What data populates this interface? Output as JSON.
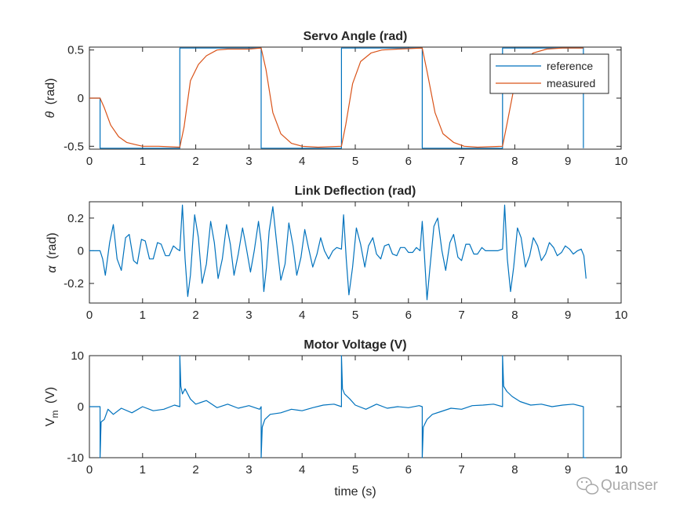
{
  "chart_data": [
    {
      "type": "line",
      "title": "Servo Angle (rad)",
      "xlabel": "",
      "ylabel": "θ (rad)",
      "ylabel_symbol": "θ",
      "ylabel_unit": "(rad)",
      "xlim": [
        0,
        10
      ],
      "ylim": [
        -0.53,
        0.53
      ],
      "xticks": [
        0,
        1,
        2,
        3,
        4,
        5,
        6,
        7,
        8,
        9,
        10
      ],
      "yticks": [
        -0.5,
        0,
        0.5
      ],
      "ytick_labels": [
        "-0.5",
        "0",
        "0.5"
      ],
      "legend": {
        "position": "top-right",
        "entries": [
          "reference",
          "measured"
        ]
      },
      "series": [
        {
          "name": "reference",
          "color": "#0072BD",
          "x": [
            0,
            0.2,
            0.2,
            1.7,
            1.7,
            3.23,
            3.23,
            4.74,
            4.74,
            6.26,
            6.26,
            7.77,
            7.77,
            9.29,
            9.29
          ],
          "y": [
            0,
            0,
            -0.52,
            -0.52,
            0.52,
            0.52,
            -0.52,
            -0.52,
            0.52,
            0.52,
            -0.52,
            -0.52,
            0.52,
            0.52,
            -0.52
          ]
        },
        {
          "name": "measured",
          "color": "#D95319",
          "x": [
            0,
            0.2,
            0.28,
            0.4,
            0.55,
            0.7,
            0.85,
            1.0,
            1.3,
            1.7,
            1.78,
            1.9,
            2.05,
            2.2,
            2.4,
            2.6,
            3.0,
            3.23,
            3.32,
            3.45,
            3.6,
            3.8,
            4.0,
            4.3,
            4.74,
            4.82,
            4.95,
            5.1,
            5.3,
            5.5,
            5.8,
            6.26,
            6.35,
            6.5,
            6.65,
            6.85,
            7.05,
            7.3,
            7.77,
            7.85,
            8.0,
            8.15,
            8.35,
            8.6,
            8.9,
            9.29
          ],
          "y": [
            0,
            0,
            -0.1,
            -0.28,
            -0.4,
            -0.46,
            -0.48,
            -0.5,
            -0.5,
            -0.51,
            -0.3,
            0.18,
            0.35,
            0.44,
            0.5,
            0.51,
            0.51,
            0.52,
            0.3,
            -0.15,
            -0.37,
            -0.47,
            -0.5,
            -0.51,
            -0.5,
            -0.28,
            0.15,
            0.38,
            0.47,
            0.5,
            0.51,
            0.52,
            0.28,
            -0.15,
            -0.37,
            -0.46,
            -0.5,
            -0.51,
            -0.5,
            -0.28,
            0.15,
            0.38,
            0.47,
            0.51,
            0.52,
            0.52
          ]
        }
      ]
    },
    {
      "type": "line",
      "title": "Link Deflection (rad)",
      "xlabel": "",
      "ylabel": "α (rad)",
      "ylabel_symbol": "α",
      "ylabel_unit": "(rad)",
      "xlim": [
        0,
        10
      ],
      "ylim": [
        -0.32,
        0.3
      ],
      "xticks": [
        0,
        1,
        2,
        3,
        4,
        5,
        6,
        7,
        8,
        9,
        10
      ],
      "yticks": [
        -0.2,
        0,
        0.2
      ],
      "ytick_labels": [
        "-0.2",
        "0",
        "0.2"
      ],
      "series": [
        {
          "name": "alpha",
          "color": "#0072BD",
          "x": [
            0,
            0.2,
            0.25,
            0.3,
            0.38,
            0.45,
            0.52,
            0.6,
            0.68,
            0.75,
            0.83,
            0.9,
            0.98,
            1.05,
            1.13,
            1.2,
            1.28,
            1.35,
            1.43,
            1.5,
            1.58,
            1.65,
            1.7,
            1.75,
            1.8,
            1.85,
            1.9,
            1.98,
            2.05,
            2.12,
            2.2,
            2.28,
            2.35,
            2.42,
            2.5,
            2.58,
            2.65,
            2.72,
            2.8,
            2.88,
            2.95,
            3.03,
            3.1,
            3.18,
            3.23,
            3.28,
            3.33,
            3.38,
            3.45,
            3.52,
            3.6,
            3.68,
            3.75,
            3.83,
            3.9,
            3.98,
            4.05,
            4.12,
            4.2,
            4.28,
            4.35,
            4.42,
            4.5,
            4.58,
            4.65,
            4.74,
            4.78,
            4.83,
            4.88,
            4.95,
            5.02,
            5.1,
            5.18,
            5.25,
            5.33,
            5.4,
            5.48,
            5.55,
            5.63,
            5.7,
            5.78,
            5.85,
            5.93,
            6.0,
            6.08,
            6.15,
            6.22,
            6.26,
            6.3,
            6.35,
            6.4,
            6.48,
            6.55,
            6.63,
            6.7,
            6.78,
            6.85,
            6.93,
            7.0,
            7.08,
            7.15,
            7.23,
            7.3,
            7.38,
            7.45,
            7.53,
            7.6,
            7.68,
            7.77,
            7.81,
            7.86,
            7.92,
            7.98,
            8.05,
            8.12,
            8.2,
            8.28,
            8.35,
            8.43,
            8.5,
            8.58,
            8.65,
            8.73,
            8.8,
            8.88,
            8.95,
            9.03,
            9.1,
            9.18,
            9.25,
            9.3,
            9.34
          ],
          "y": [
            0,
            0,
            -0.05,
            -0.15,
            0.05,
            0.16,
            -0.05,
            -0.12,
            0.08,
            0.1,
            -0.06,
            -0.08,
            0.07,
            0.06,
            -0.05,
            -0.05,
            0.05,
            0.04,
            -0.03,
            -0.03,
            0.03,
            0.01,
            0,
            0.28,
            -0.05,
            -0.28,
            -0.15,
            0.22,
            0.08,
            -0.2,
            -0.08,
            0.18,
            0.05,
            -0.17,
            -0.05,
            0.16,
            0.04,
            -0.15,
            -0.02,
            0.14,
            0.02,
            -0.13,
            0.0,
            0.18,
            0.05,
            -0.25,
            -0.1,
            0.12,
            0.27,
            0.05,
            -0.18,
            -0.08,
            0.17,
            0.03,
            -0.15,
            -0.04,
            0.13,
            0.02,
            -0.1,
            -0.02,
            0.08,
            0.0,
            -0.05,
            0.0,
            0.02,
            0.01,
            0.22,
            -0.05,
            -0.27,
            -0.1,
            0.14,
            0.04,
            -0.1,
            0.03,
            0.08,
            -0.02,
            -0.05,
            0.03,
            0.04,
            -0.02,
            -0.03,
            0.02,
            0.02,
            -0.01,
            -0.01,
            0.02,
            0.0,
            0.18,
            -0.02,
            -0.3,
            -0.12,
            0.15,
            0.2,
            0.0,
            -0.12,
            0.05,
            0.1,
            -0.04,
            -0.06,
            0.04,
            0.04,
            -0.02,
            -0.02,
            0.02,
            0.0,
            0.0,
            0.0,
            0.0,
            0.01,
            0.28,
            -0.05,
            -0.25,
            -0.1,
            0.14,
            0.08,
            -0.1,
            -0.03,
            0.08,
            0.03,
            -0.06,
            -0.02,
            0.05,
            0.02,
            -0.03,
            -0.01,
            0.03,
            0.01,
            -0.02,
            0.0,
            0.01,
            -0.03,
            -0.17
          ]
        }
      ]
    },
    {
      "type": "line",
      "title": "Motor Voltage (V)",
      "xlabel": "time (s)",
      "ylabel": "Vm (V)",
      "ylabel_symbol": "V",
      "ylabel_subscript": "m",
      "ylabel_unit": "(V)",
      "xlim": [
        0,
        10
      ],
      "ylim": [
        -10,
        10
      ],
      "xticks": [
        0,
        1,
        2,
        3,
        4,
        5,
        6,
        7,
        8,
        9,
        10
      ],
      "yticks": [
        -10,
        0,
        10
      ],
      "ytick_labels": [
        "-10",
        "0",
        "10"
      ],
      "series": [
        {
          "name": "Vm",
          "color": "#0072BD",
          "x": [
            0,
            0.2,
            0.2,
            0.22,
            0.28,
            0.35,
            0.45,
            0.6,
            0.8,
            1.0,
            1.2,
            1.4,
            1.6,
            1.7,
            1.7,
            1.72,
            1.75,
            1.8,
            1.9,
            2.0,
            2.2,
            2.4,
            2.6,
            2.8,
            3.0,
            3.2,
            3.23,
            3.23,
            3.25,
            3.3,
            3.4,
            3.6,
            3.8,
            4.0,
            4.2,
            4.4,
            4.6,
            4.74,
            4.74,
            4.76,
            4.8,
            4.9,
            5.0,
            5.2,
            5.4,
            5.6,
            5.8,
            6.0,
            6.2,
            6.26,
            6.26,
            6.28,
            6.35,
            6.45,
            6.6,
            6.8,
            7.0,
            7.2,
            7.4,
            7.6,
            7.77,
            7.77,
            7.79,
            7.85,
            7.95,
            8.1,
            8.3,
            8.5,
            8.7,
            8.9,
            9.1,
            9.29,
            9.29,
            9.32,
            9.34
          ],
          "y": [
            0,
            0,
            -10,
            -3,
            -2.5,
            -0.5,
            -1.5,
            -0.3,
            -1.2,
            0,
            -0.8,
            -0.5,
            0.3,
            0,
            10,
            4,
            2.5,
            3.5,
            1.5,
            0.5,
            1.2,
            -0.2,
            0.5,
            -0.3,
            0.2,
            -0.5,
            0,
            -10,
            -4,
            -2.5,
            -1.5,
            -1.2,
            -0.5,
            -0.8,
            -0.2,
            0.3,
            0.5,
            0,
            10,
            3.5,
            2.5,
            1.5,
            0.3,
            -0.5,
            0.5,
            -0.3,
            0,
            -0.2,
            0.2,
            0,
            -10,
            -4,
            -2.5,
            -1.5,
            -1,
            -0.3,
            -0.5,
            0.2,
            0.3,
            0.5,
            0,
            10,
            4,
            3,
            2,
            1,
            0.3,
            0.5,
            0,
            0.3,
            0.5,
            0,
            -10,
            -10,
            -10
          ]
        }
      ]
    }
  ],
  "watermark": "Quanser",
  "watermark_icon": "wechat-icon"
}
